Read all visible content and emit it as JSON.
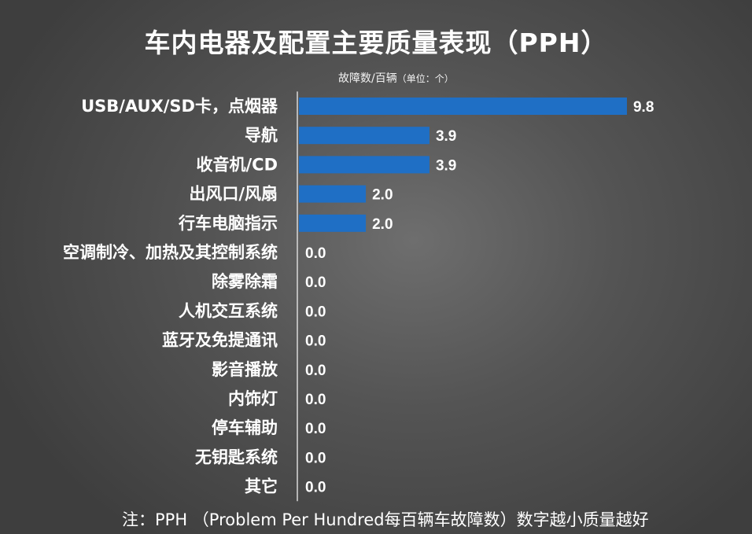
{
  "chart_data": {
    "type": "bar",
    "orientation": "horizontal",
    "title": "车内电器及配置主要质量表现（PPH）",
    "unit_label": "故障数/百辆",
    "unit_note": "（单位：个）",
    "categories": [
      "USB/AUX/SD卡，点烟器",
      "导航",
      "收音机/CD",
      "出风口/风扇",
      "行车电脑指示",
      "空调制冷、加热及其控制系统",
      "除雾除霜",
      "人机交互系统",
      "蓝牙及免提通讯",
      "影音播放",
      "内饰灯",
      "停车辅助",
      "无钥匙系统",
      "其它"
    ],
    "values": [
      9.8,
      3.9,
      3.9,
      2.0,
      2.0,
      0.0,
      0.0,
      0.0,
      0.0,
      0.0,
      0.0,
      0.0,
      0.0,
      0.0
    ],
    "value_labels": [
      "9.8",
      "3.9",
      "3.9",
      "2.0",
      "2.0",
      "0.0",
      "0.0",
      "0.0",
      "0.0",
      "0.0",
      "0.0",
      "0.0",
      "0.0",
      "0.0"
    ],
    "xlim": [
      0,
      10
    ],
    "bar_color": "#1f6fc5",
    "grid": false,
    "legend": "none"
  },
  "footnote": "注：PPH （Problem Per Hundred每百辆车故障数）数字越小质量越好"
}
